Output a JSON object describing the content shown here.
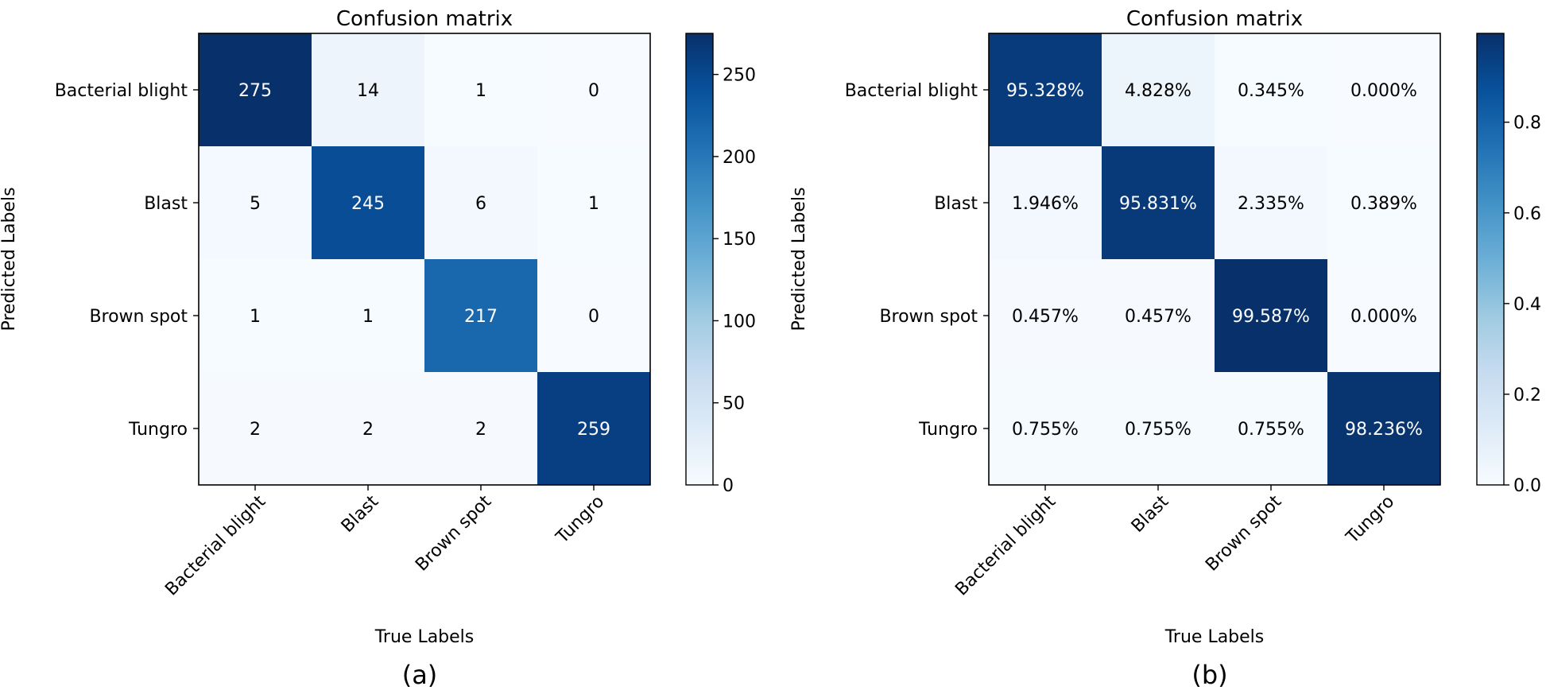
{
  "chart_data": [
    {
      "type": "heatmap",
      "title": "Confusion matrix",
      "xlabel": "True Labels",
      "ylabel": "Predicted Labels",
      "caption": "(a)",
      "categories": [
        "Bacterial blight",
        "Blast",
        "Brown spot",
        "Tungro"
      ],
      "matrix": [
        [
          275,
          14,
          1,
          0
        ],
        [
          5,
          245,
          6,
          1
        ],
        [
          1,
          1,
          217,
          0
        ],
        [
          2,
          2,
          2,
          259
        ]
      ],
      "labels": [
        [
          "275",
          "14",
          "1",
          "0"
        ],
        [
          "5",
          "245",
          "6",
          "1"
        ],
        [
          "1",
          "1",
          "217",
          "0"
        ],
        [
          "2",
          "2",
          "2",
          "259"
        ]
      ],
      "colormap": "Blues",
      "colorbar": {
        "min": 0,
        "max": 275,
        "ticks": [
          0,
          50,
          100,
          150,
          200,
          250
        ],
        "tick_labels": [
          "0",
          "50",
          "100",
          "150",
          "200",
          "250"
        ]
      }
    },
    {
      "type": "heatmap",
      "title": "Confusion matrix",
      "xlabel": "True Labels",
      "ylabel": "Predicted Labels",
      "caption": "(b)",
      "categories": [
        "Bacterial blight",
        "Blast",
        "Brown spot",
        "Tungro"
      ],
      "matrix": [
        [
          0.95328,
          0.04828,
          0.00345,
          0.0
        ],
        [
          0.01946,
          0.95831,
          0.02335,
          0.00389
        ],
        [
          0.00457,
          0.00457,
          0.99587,
          0.0
        ],
        [
          0.00755,
          0.00755,
          0.00755,
          0.98236
        ]
      ],
      "labels": [
        [
          "95.328%",
          "4.828%",
          "0.345%",
          "0.000%"
        ],
        [
          "1.946%",
          "95.831%",
          "2.335%",
          "0.389%"
        ],
        [
          "0.457%",
          "0.457%",
          "99.587%",
          "0.000%"
        ],
        [
          "0.755%",
          "0.755%",
          "0.755%",
          "98.236%"
        ]
      ],
      "colormap": "Blues",
      "colorbar": {
        "min": 0,
        "max": 0.99587,
        "ticks": [
          0,
          0.2,
          0.4,
          0.6,
          0.8
        ],
        "tick_labels": [
          "0.0",
          "0.2",
          "0.4",
          "0.6",
          "0.8"
        ]
      }
    }
  ]
}
